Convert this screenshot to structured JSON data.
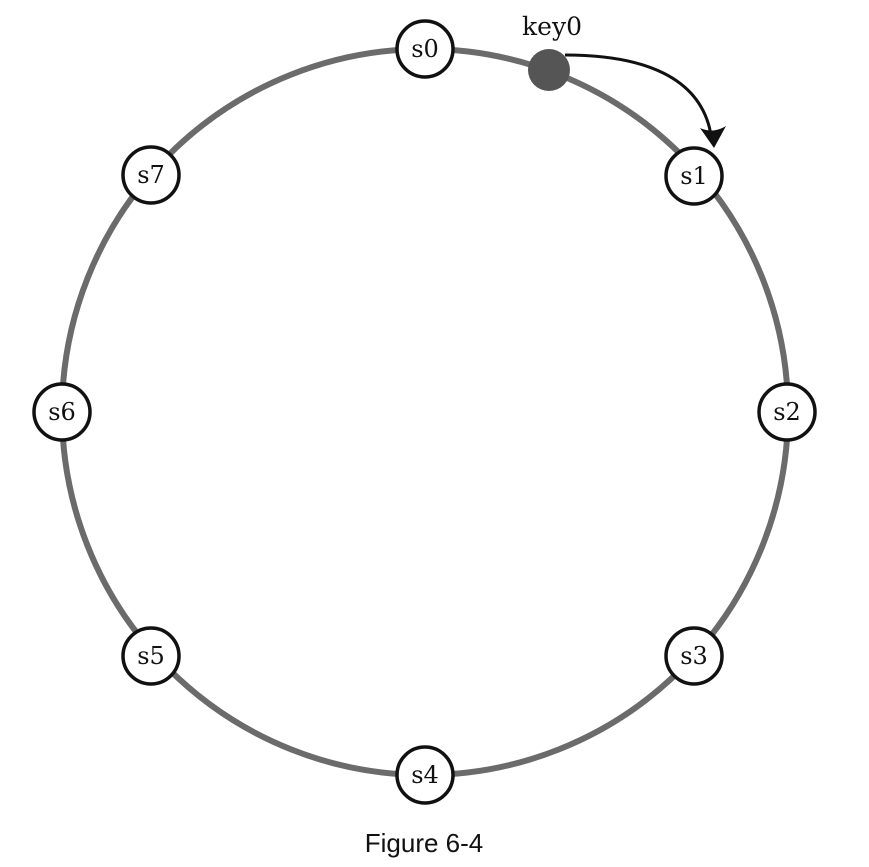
{
  "diagram": {
    "servers": [
      {
        "id": "s0",
        "label": "s0"
      },
      {
        "id": "s1",
        "label": "s1"
      },
      {
        "id": "s2",
        "label": "s2"
      },
      {
        "id": "s3",
        "label": "s3"
      },
      {
        "id": "s4",
        "label": "s4"
      },
      {
        "id": "s5",
        "label": "s5"
      },
      {
        "id": "s6",
        "label": "s6"
      },
      {
        "id": "s7",
        "label": "s7"
      }
    ],
    "key": {
      "label": "key0"
    },
    "caption": "Figure 6-4",
    "colors": {
      "ring": "#6b6b6b",
      "server_stroke": "#111111",
      "server_fill": "#ffffff",
      "key_fill": "#555555",
      "arrow": "#111111"
    }
  }
}
